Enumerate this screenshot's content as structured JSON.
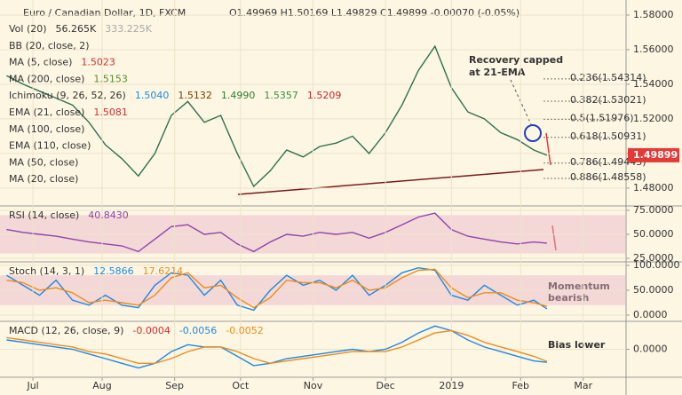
{
  "header": {
    "symbol": "Euro / Canadian Dollar, 1D, FXCM",
    "ohlc": "O1.49969 H1.50169 L1.49829 C1.49899 -0.00070 (-0.05%)"
  },
  "indicators": [
    {
      "label": "Vol (20)",
      "values": [
        "56.265K",
        "333.225K"
      ],
      "colors": [
        "#333333",
        "#aaaaaa"
      ]
    },
    {
      "label": "BB (20, close, 2)",
      "values": [],
      "colors": []
    },
    {
      "label": "MA (5, close)",
      "values": [
        "1.5023"
      ],
      "colors": [
        "#d32f2f"
      ]
    },
    {
      "label": "MA (200, close)",
      "values": [
        "1.5153"
      ],
      "colors": [
        "#5b8c2a"
      ]
    },
    {
      "label": "Ichimoku (9, 26, 52, 26)",
      "values": [
        "1.5040",
        "1.5132",
        "1.4990",
        "1.5357",
        "1.5209"
      ],
      "colors": [
        "#1e88e5",
        "#7b3f00",
        "#2e7d32",
        "#388e3c",
        "#c62828"
      ]
    },
    {
      "label": "EMA (21, close)",
      "values": [
        "1.5081"
      ],
      "colors": [
        "#d32f2f"
      ]
    },
    {
      "label": "MA (100, close)",
      "values": [],
      "colors": []
    },
    {
      "label": "EMA (110, close)",
      "values": [],
      "colors": []
    },
    {
      "label": "MA (50, close)",
      "values": [],
      "colors": []
    },
    {
      "label": "MA (20, close)",
      "values": [],
      "colors": []
    }
  ],
  "pane_labels": [
    {
      "label": "RSI (14, close)",
      "values": [
        "40.8430"
      ],
      "colors": [
        "#8e44ad"
      ]
    },
    {
      "label": "Stoch (14, 3, 1)",
      "values": [
        "12.5866",
        "17.6214"
      ],
      "colors": [
        "#1e88e5",
        "#ef8c1a"
      ]
    },
    {
      "label": "MACD (12, 26, close, 9)",
      "values": [
        "-0.0004",
        "-0.0056",
        "-0.0052"
      ],
      "colors": [
        "#d32f2f",
        "#1e88e5",
        "#ef8c1a"
      ]
    }
  ],
  "annotations": [
    "Recovery capped",
    "at 21-EMA",
    "Momentum",
    "bearish",
    "Bias lower"
  ],
  "chart_data": [
    {
      "type": "line",
      "xlim": [
        -10,
        180
      ],
      "ylim": [
        1.4697,
        1.5887
      ],
      "x": [
        -8,
        -3,
        2,
        7,
        12,
        17,
        22,
        27,
        32,
        37,
        42,
        47,
        52,
        57,
        62,
        67,
        72,
        77,
        82,
        87,
        92,
        97,
        102,
        107,
        112,
        117,
        122,
        127,
        132,
        137,
        142,
        147,
        152,
        156
      ],
      "series": [
        {
          "color": "#2f6f4f",
          "values": [
            1.545,
            1.54,
            1.536,
            1.532,
            1.528,
            1.518,
            1.505,
            1.497,
            1.487,
            1.5,
            1.522,
            1.53,
            1.518,
            1.522,
            1.5,
            1.481,
            1.49,
            1.502,
            1.498,
            1.504,
            1.506,
            1.51,
            1.5,
            1.512,
            1.528,
            1.548,
            1.562,
            1.538,
            1.524,
            1.52,
            1.512,
            1.508,
            1.502,
            1.499
          ]
        }
      ],
      "yticks": [
        {
          "value": 1.58,
          "label": "1.58000"
        },
        {
          "value": 1.56,
          "label": "1.56000"
        },
        {
          "value": 1.54,
          "label": "1.54000"
        },
        {
          "value": 1.52,
          "label": "1.52000"
        },
        {
          "value": 1.5,
          "label": "1.50000"
        },
        {
          "value": 1.48,
          "label": "1.48000"
        }
      ],
      "levels": [
        {
          "value": 1.54314,
          "label": "0.236(1.54314)"
        },
        {
          "value": 1.53021,
          "label": "0.382(1.53021)"
        },
        {
          "value": 1.51976,
          "label": "0.5(1.51976)"
        },
        {
          "value": 1.50931,
          "label": "0.618(1.50931)"
        },
        {
          "value": 1.49443,
          "label": "0.786(1.49443)"
        },
        {
          "value": 1.48558,
          "label": "0.886(1.48558)"
        }
      ],
      "last": {
        "value": 1.49899,
        "label": "1.49899"
      },
      "grid": true
    },
    {
      "type": "line",
      "xlim": [
        -10,
        180
      ],
      "ylim": [
        21.3,
        79.6
      ],
      "x": [
        -8,
        -3,
        2,
        7,
        12,
        17,
        22,
        27,
        32,
        37,
        42,
        47,
        52,
        57,
        62,
        67,
        72,
        77,
        82,
        87,
        92,
        97,
        102,
        107,
        112,
        117,
        122,
        127,
        132,
        137,
        142,
        147,
        152,
        156
      ],
      "series": [
        {
          "color": "#8e44ad",
          "values": [
            55,
            52,
            50,
            48,
            45,
            42,
            40,
            38,
            32,
            45,
            58,
            60,
            50,
            52,
            40,
            32,
            42,
            50,
            48,
            52,
            50,
            52,
            46,
            52,
            60,
            68,
            72,
            55,
            48,
            45,
            42,
            40,
            42,
            40.843
          ]
        }
      ],
      "band": [
        30,
        70
      ],
      "yticks": [
        {
          "value": 75,
          "label": "75.0000"
        },
        {
          "value": 50,
          "label": "50.0000"
        },
        {
          "value": 25,
          "label": "25.0000"
        }
      ],
      "grid": true
    },
    {
      "type": "line",
      "xlim": [
        -10,
        180
      ],
      "ylim": [
        -12.5,
        107
      ],
      "x": [
        -8,
        -3,
        2,
        7,
        12,
        17,
        22,
        27,
        32,
        37,
        42,
        47,
        52,
        57,
        62,
        67,
        72,
        77,
        82,
        87,
        92,
        97,
        102,
        107,
        112,
        117,
        122,
        127,
        132,
        137,
        142,
        147,
        152,
        156
      ],
      "series": [
        {
          "color": "#1e88e5",
          "values": [
            80,
            60,
            40,
            70,
            30,
            20,
            40,
            20,
            15,
            60,
            85,
            80,
            40,
            70,
            20,
            10,
            50,
            80,
            60,
            70,
            50,
            80,
            40,
            60,
            85,
            95,
            90,
            40,
            30,
            60,
            40,
            20,
            30,
            12.5866
          ]
        },
        {
          "color": "#ef8c1a",
          "values": [
            70,
            65,
            50,
            55,
            45,
            25,
            30,
            25,
            20,
            40,
            75,
            85,
            55,
            60,
            35,
            15,
            35,
            70,
            65,
            65,
            55,
            70,
            50,
            55,
            75,
            90,
            92,
            55,
            35,
            45,
            45,
            30,
            25,
            17.6214
          ]
        }
      ],
      "band": [
        20,
        80
      ],
      "yticks": [
        {
          "value": 100,
          "label": "100.0000"
        },
        {
          "value": 50,
          "label": "50.0000"
        },
        {
          "value": 0,
          "label": "0.0000"
        }
      ],
      "grid": true
    },
    {
      "type": "line",
      "xlim": [
        -10,
        180
      ],
      "ylim": [
        -0.012,
        0.012
      ],
      "x": [
        -8,
        -3,
        2,
        7,
        12,
        17,
        22,
        27,
        32,
        37,
        42,
        47,
        52,
        57,
        62,
        67,
        72,
        77,
        82,
        87,
        92,
        97,
        102,
        107,
        112,
        117,
        122,
        127,
        132,
        137,
        142,
        147,
        152,
        156
      ],
      "series": [
        {
          "color": "#1e88e5",
          "values": [
            0.004,
            0.003,
            0.002,
            0.001,
            0,
            -0.002,
            -0.004,
            -0.006,
            -0.008,
            -0.006,
            -0.001,
            0.002,
            0.001,
            0.001,
            -0.003,
            -0.007,
            -0.006,
            -0.004,
            -0.003,
            -0.002,
            -0.001,
            0,
            -0.001,
            0,
            0.003,
            0.007,
            0.01,
            0.008,
            0.004,
            0.001,
            -0.001,
            -0.003,
            -0.005,
            -0.0056
          ]
        },
        {
          "color": "#ef8c1a",
          "values": [
            0.005,
            0.004,
            0.003,
            0.002,
            0.001,
            -0.001,
            -0.002,
            -0.004,
            -0.006,
            -0.006,
            -0.004,
            -0.001,
            0.001,
            0.001,
            -0.001,
            -0.004,
            -0.006,
            -0.005,
            -0.004,
            -0.003,
            -0.002,
            -0.001,
            -0.001,
            -0.001,
            0.001,
            0.004,
            0.007,
            0.008,
            0.006,
            0.003,
            0.001,
            -0.001,
            -0.003,
            -0.0052
          ]
        }
      ],
      "yticks": [
        {
          "value": 0,
          "label": "0.0000"
        }
      ],
      "xticks": [
        {
          "value": 0,
          "label": "Jul"
        },
        {
          "value": 21,
          "label": "Aug"
        },
        {
          "value": 43,
          "label": "Sep"
        },
        {
          "value": 63,
          "label": "Oct"
        },
        {
          "value": 85,
          "label": "Nov"
        },
        {
          "value": 107,
          "label": "Dec"
        },
        {
          "value": 127,
          "label": "2019"
        },
        {
          "value": 148,
          "label": "Feb"
        },
        {
          "value": 167,
          "label": "Mar"
        }
      ],
      "grid": true
    }
  ]
}
